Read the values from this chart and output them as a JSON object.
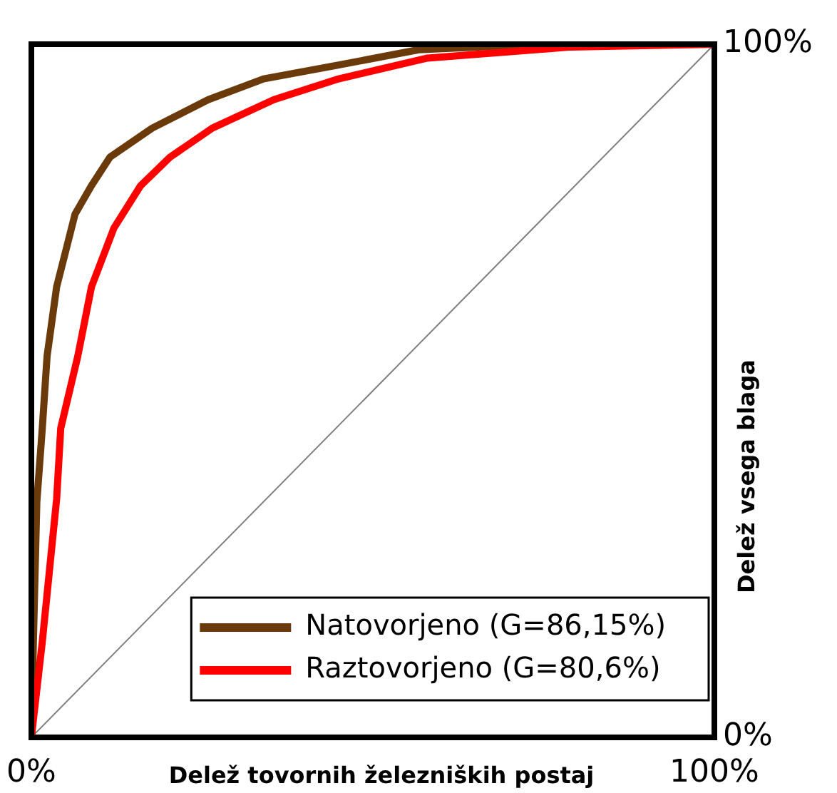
{
  "chart_data": {
    "type": "line",
    "xlabel": "Delež tovornih železniških postaj",
    "ylabel": "Delež vsega blaga",
    "xlim": [
      0,
      100
    ],
    "ylim": [
      0,
      100
    ],
    "xticks": [
      {
        "value": 0,
        "label": "0%"
      },
      {
        "value": 100,
        "label": "100%"
      }
    ],
    "yticks": [
      {
        "value": 0,
        "label": "0%"
      },
      {
        "value": 100,
        "label": "100%"
      }
    ],
    "legend": "bottom right",
    "marker": "none",
    "line_style": "solid",
    "series": [
      {
        "color": "#808080",
        "x": [
          0,
          100
        ],
        "values": [
          0,
          100
        ]
      },
      {
        "name": "Natovorjeno (G=86,15%)",
        "color": "#6b3a0a",
        "x": [
          0,
          0.3,
          0.8,
          1.6,
          2.3,
          3.7,
          6.4,
          8.8,
          11.5,
          17.7,
          25.9,
          34,
          45,
          56.7,
          70,
          100
        ],
        "values": [
          0,
          14,
          34,
          44.6,
          55,
          65,
          75.5,
          79.6,
          83.7,
          87.9,
          92,
          95,
          97,
          99.2,
          99.8,
          100
        ]
      },
      {
        "name": "Raztovorjeno (G=80,6%)",
        "color": "#ff0000",
        "x": [
          0,
          1.6,
          3.7,
          4.3,
          6.8,
          8.8,
          12.1,
          16,
          20.3,
          26.5,
          35.5,
          45,
          58,
          79,
          100
        ],
        "values": [
          0,
          13.8,
          34.4,
          44.6,
          55,
          65,
          73.5,
          79.6,
          83.7,
          87.9,
          92,
          95,
          98,
          99.6,
          100
        ]
      }
    ]
  }
}
